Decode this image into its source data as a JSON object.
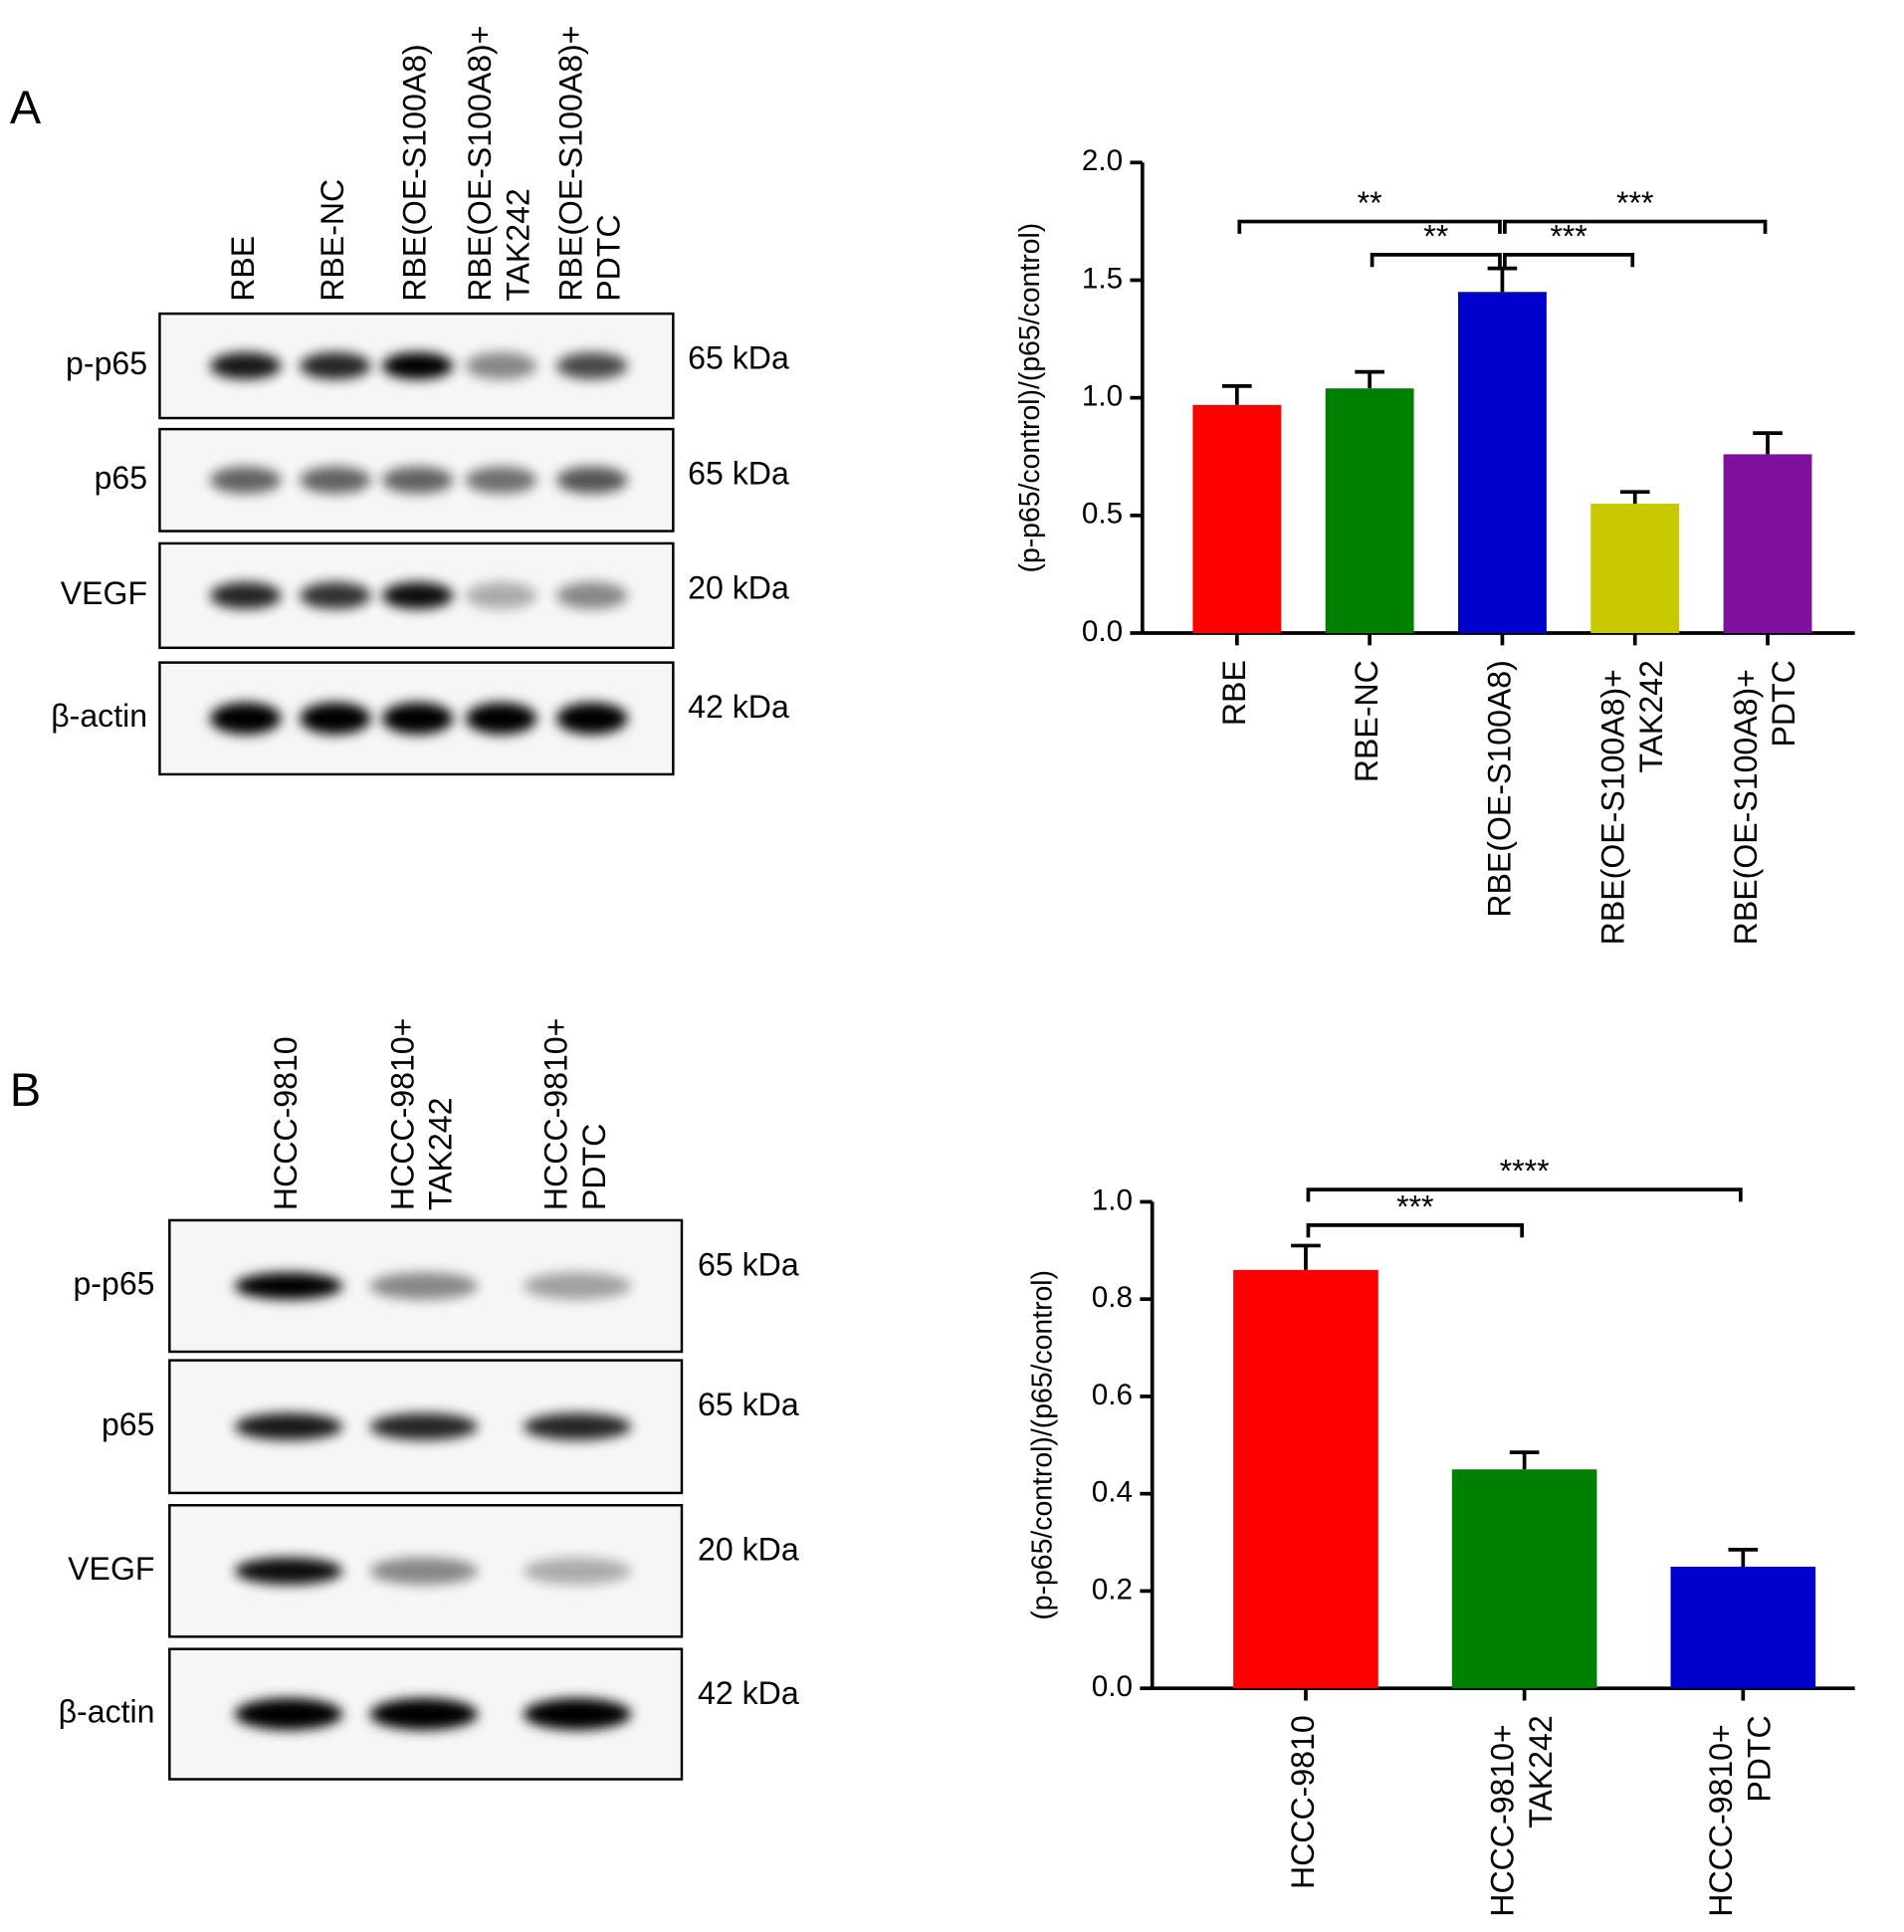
{
  "panels": [
    {
      "label": "A",
      "lanes": [
        "RBE",
        "RBE-NC",
        "RBE(OE-S100A8)",
        "RBE(OE-S100A8)+\nTAK242",
        "RBE(OE-S100A8)+\nPDTC"
      ],
      "blots": [
        {
          "protein": "p-p65",
          "size": "65 kDa"
        },
        {
          "protein": "p65",
          "size": "65 kDa"
        },
        {
          "protein": "VEGF",
          "size": "20 kDa"
        },
        {
          "protein": "β-actin",
          "size": "42 kDa"
        }
      ]
    },
    {
      "label": "B",
      "lanes": [
        "HCCC-9810",
        "HCCC-9810+\nTAK242",
        "HCCC-9810+\nPDTC"
      ],
      "blots": [
        {
          "protein": "p-p65",
          "size": "65 kDa"
        },
        {
          "protein": "p65",
          "size": "65 kDa"
        },
        {
          "protein": "VEGF",
          "size": "20 kDa"
        },
        {
          "protein": "β-actin",
          "size": "42 kDa"
        }
      ]
    }
  ],
  "chart_data": [
    {
      "type": "bar",
      "ylabel": "(p-p65/control)/(p65/control)",
      "categories": [
        "RBE",
        "RBE-NC",
        "RBE(OE-S100A8)",
        "RBE(OE-S100A8)+\nTAK242",
        "RBE(OE-S100A8)+\nPDTC"
      ],
      "values": [
        0.97,
        1.04,
        1.45,
        0.55,
        0.76
      ],
      "errors": [
        0.08,
        0.07,
        0.1,
        0.05,
        0.09
      ],
      "colors": [
        "#ff0000",
        "#008000",
        "#0000cc",
        "#c8c800",
        "#7f0f9f"
      ],
      "ylim": [
        0,
        2
      ],
      "yticks": [
        {
          "value": 0,
          "label": "0.0"
        },
        0.5,
        {
          "value": 1,
          "label": "1.0"
        },
        1.5,
        {
          "value": 2,
          "label": "2.0"
        }
      ],
      "brackets": [
        {
          "from": 0,
          "to": 2,
          "label": "**"
        },
        {
          "from": 1,
          "to": 2,
          "label": "**"
        },
        {
          "from": 2,
          "to": 3,
          "label": "***"
        },
        {
          "from": 2,
          "to": 4,
          "label": "***"
        }
      ]
    },
    {
      "type": "bar",
      "ylabel": "(p-p65/control)/(p65/control)",
      "categories": [
        "HCCC-9810",
        "HCCC-9810+\nTAK242",
        "HCCC-9810+\nPDTC"
      ],
      "values": [
        0.86,
        0.45,
        0.25
      ],
      "errors": [
        0.05,
        0.035,
        0.035
      ],
      "colors": [
        "#ff0000",
        "#008000",
        "#0000cc"
      ],
      "ylim": [
        0,
        1
      ],
      "yticks": [
        {
          "value": 0,
          "label": "0.0"
        },
        0.2,
        0.4,
        0.6,
        0.8,
        {
          "value": 1,
          "label": "1.0"
        }
      ],
      "brackets": [
        {
          "from": 0,
          "to": 1,
          "label": "***"
        },
        {
          "from": 0,
          "to": 2,
          "label": "****"
        }
      ]
    }
  ]
}
